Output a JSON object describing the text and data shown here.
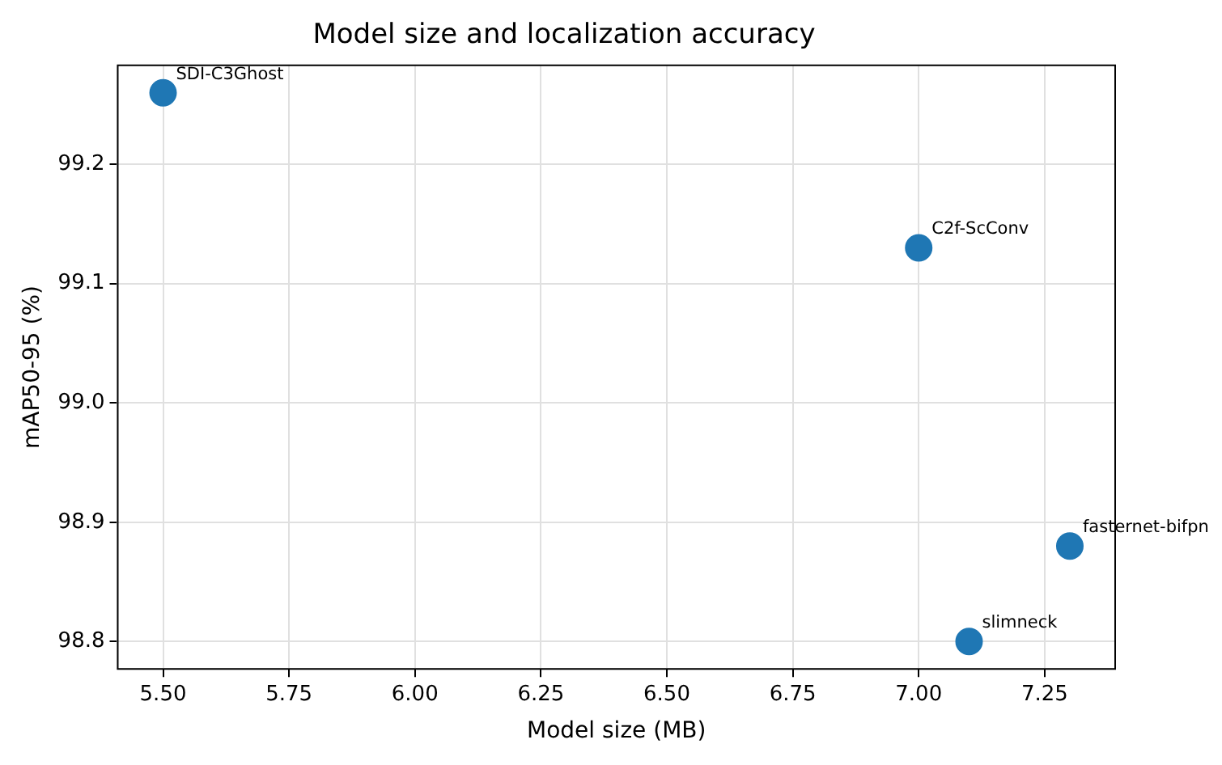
{
  "chart_data": {
    "type": "scatter",
    "title": "Model size and localization accuracy",
    "xlabel": "Model size (MB)",
    "ylabel": "mAP50-95 (%)",
    "x": [
      5.5,
      7.0,
      7.3,
      7.1
    ],
    "values": [
      99.26,
      99.13,
      98.88,
      98.8
    ],
    "color": "#1f77b4",
    "annotations": [
      {
        "text": "SDI-C3Ghost",
        "x": 5.5,
        "y": 99.26
      },
      {
        "text": "C2f-ScConv",
        "x": 7.0,
        "y": 99.13
      },
      {
        "text": "fasternet-bifpn",
        "x": 7.3,
        "y": 98.88
      },
      {
        "text": "slimneck",
        "x": 7.1,
        "y": 98.8
      }
    ],
    "xlim": [
      5.41,
      7.39
    ],
    "xticks": [
      {
        "value": 5.5,
        "label": "5.50"
      },
      5.75,
      {
        "value": 6,
        "label": "6.00"
      },
      6.25,
      {
        "value": 6.5,
        "label": "6.50"
      },
      6.75,
      {
        "value": 7,
        "label": "7.00"
      },
      7.25
    ],
    "ylim": [
      98.777,
      99.283
    ],
    "yticks": [
      {
        "value": 98.8,
        "label": "98.8"
      },
      {
        "value": 98.9,
        "label": "98.9"
      },
      {
        "value": 99,
        "label": "99.0"
      },
      {
        "value": 99.1,
        "label": "99.1"
      },
      {
        "value": 99.2,
        "label": "99.2"
      }
    ],
    "grid": true,
    "marker": "circle"
  }
}
